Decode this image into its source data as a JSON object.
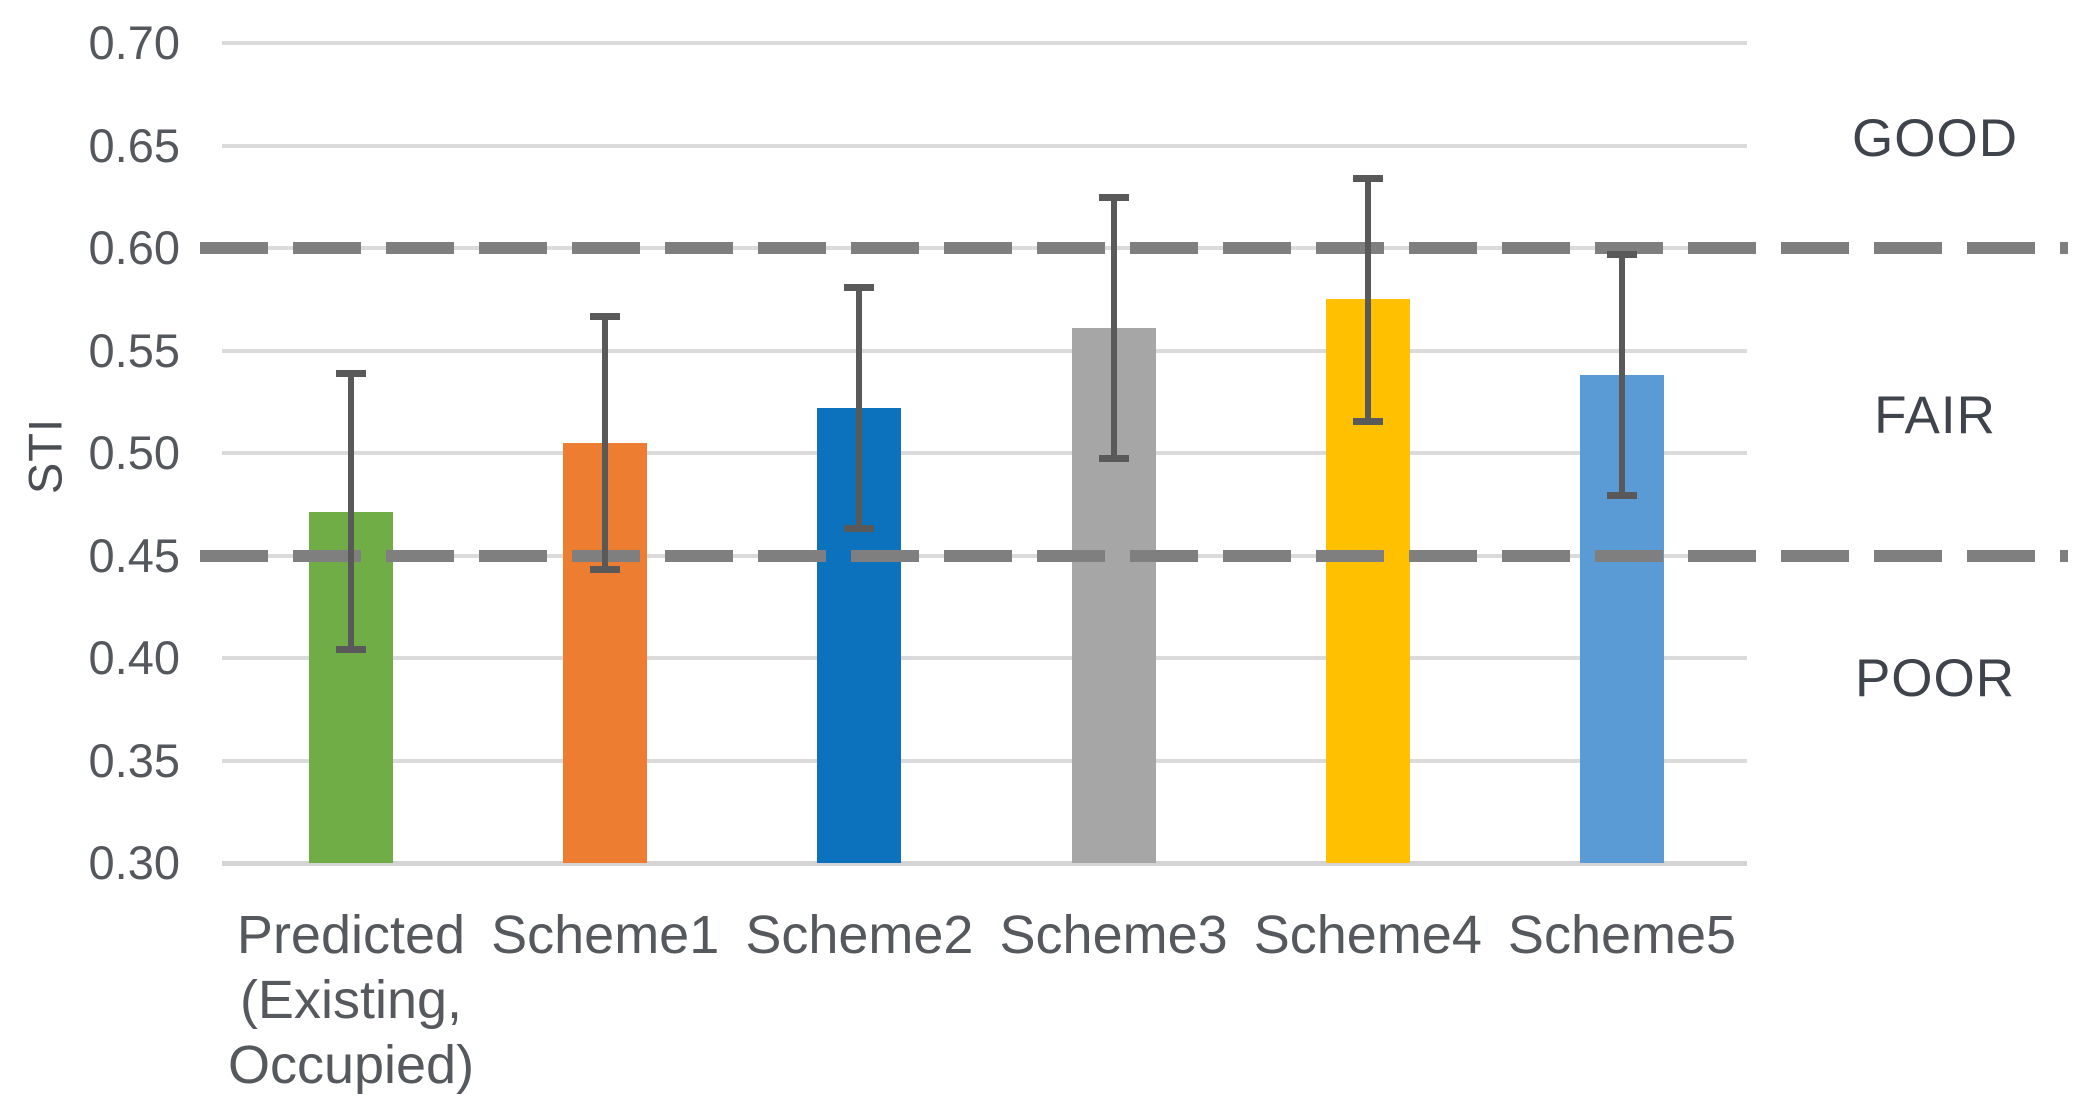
{
  "chart_data": {
    "type": "bar",
    "title": "",
    "xlabel": "",
    "ylabel": "STI",
    "categories": [
      "Predicted (Existing, Occupied)",
      "Scheme1",
      "Scheme2",
      "Scheme3",
      "Scheme4",
      "Scheme5"
    ],
    "values": [
      0.471,
      0.505,
      0.522,
      0.561,
      0.575,
      0.538
    ],
    "error_high": [
      0.539,
      0.567,
      0.581,
      0.625,
      0.634,
      0.597
    ],
    "error_low": [
      0.404,
      0.443,
      0.463,
      0.497,
      0.515,
      0.479
    ],
    "bar_colors": [
      "#70AD47",
      "#ED7D31",
      "#0C72BE",
      "#A6A6A6",
      "#FFC000",
      "#5B9BD5"
    ],
    "ylim": [
      0.3,
      0.7
    ],
    "ytick_step": 0.05,
    "ytick_labels": [
      "0.70",
      "0.65",
      "0.60",
      "0.55",
      "0.50",
      "0.45",
      "0.40",
      "0.35",
      "0.30"
    ],
    "grid": true,
    "legend": false,
    "error_bars": true,
    "thresholds": [
      {
        "value": 0.6,
        "style": "dashed",
        "color": "#7f7f7f"
      },
      {
        "value": 0.45,
        "style": "dashed",
        "color": "#7f7f7f"
      }
    ],
    "zone_labels": [
      {
        "label": "GOOD",
        "anchor_value": 0.653
      },
      {
        "label": "FAIR",
        "anchor_value": 0.518
      },
      {
        "label": "POOR",
        "anchor_value": 0.39
      }
    ]
  },
  "colors": {
    "grid": "#dbdbdb",
    "threshold_dash": "#7f7f7f",
    "error_bar": "#595959",
    "tick_text": "#54575c",
    "zone_text": "#3f434c"
  }
}
